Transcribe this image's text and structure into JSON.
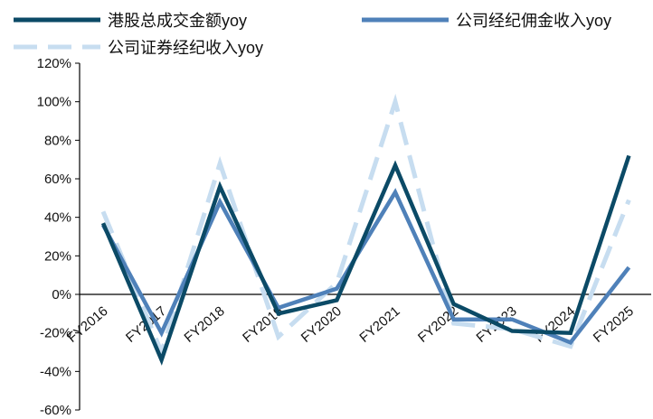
{
  "chart_data": {
    "type": "line",
    "categories": [
      "FY2016",
      "FY2017",
      "FY2018",
      "FY2019",
      "FY2020",
      "FY2021",
      "FY2022",
      "FY2023",
      "FY2024",
      "FY2025"
    ],
    "series": [
      {
        "name": "港股总成交金额yoy",
        "values": [
          37,
          -34,
          56,
          -10,
          -3,
          67,
          -5,
          -19,
          -20,
          72
        ],
        "color": "#0b4a66",
        "dash": "solid"
      },
      {
        "name": "公司经纪佣金收入yoy",
        "values": [
          36,
          -20,
          48,
          -7,
          3,
          53,
          -13,
          -13,
          -25,
          14
        ],
        "color": "#4f81b9",
        "dash": "solid"
      },
      {
        "name": "公司证券经纪收入yoy",
        "values": [
          43,
          -30,
          68,
          -22,
          6,
          100,
          -15,
          -18,
          -27,
          49
        ],
        "color": "#c7ddf0",
        "dash": "dashed"
      }
    ],
    "yticks": [
      "120%",
      "100%",
      "80%",
      "60%",
      "40%",
      "20%",
      "0%",
      "-20%",
      "-40%",
      "-60%"
    ],
    "ylim": [
      -60,
      120
    ],
    "xlabel": "",
    "ylabel": "",
    "grid": false,
    "legend_position": "top"
  }
}
